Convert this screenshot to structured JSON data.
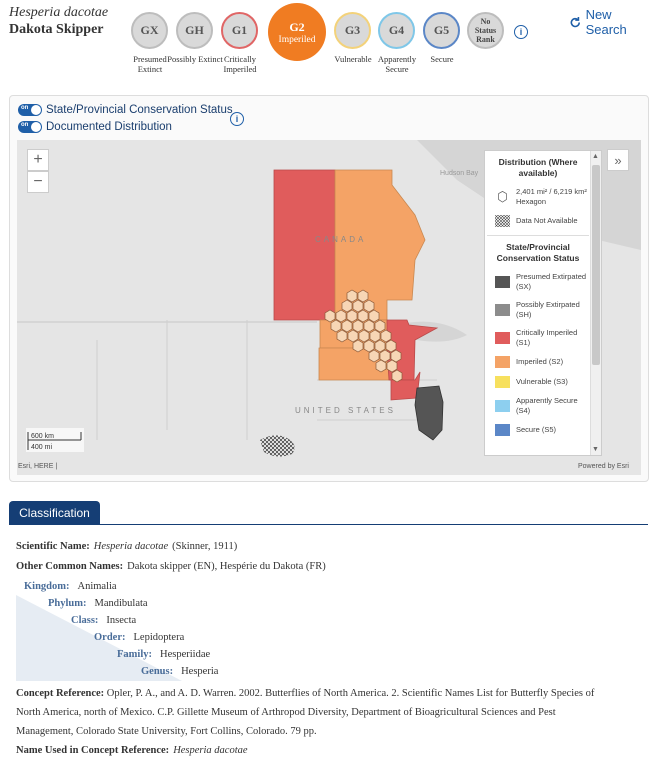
{
  "header": {
    "scientific_name": "Hesperia dacotae",
    "common_name": "Dakota Skipper",
    "new_search": "New Search"
  },
  "ranks": [
    {
      "code": "GX",
      "caption": "Presumed Extinct",
      "fill": "#d9d9d9",
      "border": "#bdbdbd",
      "text": "#555"
    },
    {
      "code": "GH",
      "caption": "Possibly Extinct",
      "fill": "#d9d9d9",
      "border": "#bdbdbd",
      "text": "#555"
    },
    {
      "code": "G1",
      "caption": "Critically Imperiled",
      "fill": "#d9d9d9",
      "border": "#e06666",
      "text": "#555"
    },
    {
      "code": "G3",
      "caption": "Vulnerable",
      "fill": "#d9d9d9",
      "border": "#f3d27a",
      "text": "#555"
    },
    {
      "code": "G4",
      "caption": "Apparently Secure",
      "fill": "#d9d9d9",
      "border": "#7fc7e8",
      "text": "#555"
    },
    {
      "code": "G5",
      "caption": "Secure",
      "fill": "#d9d9d9",
      "border": "#5b87c7",
      "text": "#555"
    }
  ],
  "current_rank": {
    "code": "G2",
    "label": "Imperiled",
    "color": "#f07c22"
  },
  "no_status": "No Status Rank",
  "map": {
    "toggle_on": "on",
    "toggle_state_status": "State/Provincial Conservation Status",
    "toggle_distribution": "Documented Distribution",
    "hudson_bay": "Hudson Bay",
    "canada": "CANADA",
    "united_states": "UNITED STATES",
    "scale_km": "600 km",
    "scale_mi": "400 mi",
    "attribution_left": "Esri, HERE |",
    "attribution_right": "Powered by Esri",
    "legend": {
      "distribution_title": "Distribution (Where available)",
      "hexagon_label": "2,401 mi² / 6,219 km² Hexagon",
      "no_data_label": "Data Not Available",
      "status_title": "State/Provincial Conservation Status",
      "items": [
        {
          "label": "Presumed Extirpated (SX)",
          "color": "#555555"
        },
        {
          "label": "Possibly Extirpated (SH)",
          "color": "#8c8c8c"
        },
        {
          "label": "Critically Imperiled (S1)",
          "color": "#e05c5c"
        },
        {
          "label": "Imperiled (S2)",
          "color": "#f4a366"
        },
        {
          "label": "Vulnerable (S3)",
          "color": "#f7e05e"
        },
        {
          "label": "Apparently Secure (S4)",
          "color": "#8dcfef"
        },
        {
          "label": "Secure (S5)",
          "color": "#5b87c7"
        }
      ]
    }
  },
  "classification": {
    "tab": "Classification",
    "scientific_name_label": "Scientific Name:",
    "scientific_name": "Hesperia dacotae",
    "scientific_author": "(Skinner, 1911)",
    "other_common_label": "Other Common Names:",
    "other_common": "Dakota skipper (EN), Hespérie du Dakota (FR)",
    "taxonomy": [
      {
        "rank": "Kingdom:",
        "value": "Animalia"
      },
      {
        "rank": "Phylum:",
        "value": "Mandibulata"
      },
      {
        "rank": "Class:",
        "value": "Insecta"
      },
      {
        "rank": "Order:",
        "value": "Lepidoptera"
      },
      {
        "rank": "Family:",
        "value": "Hesperiidae"
      },
      {
        "rank": "Genus:",
        "value": "Hesperia"
      }
    ],
    "concept_label": "Concept Reference:",
    "concept_line1": "Opler, P. A., and A. D. Warren. 2002. Butterflies of North America. 2. Scientific Names List for Butterfly Species of",
    "concept_line2": "North America, north of Mexico. C.P. Gillette Museum of Arthropod Diversity, Department of Bioagricultural Sciences and Pest",
    "concept_line3": "Management, Colorado State University, Fort Collins, Colorado. 79 pp.",
    "name_used_label": "Name Used in Concept Reference:",
    "name_used": "Hesperia dacotae"
  }
}
